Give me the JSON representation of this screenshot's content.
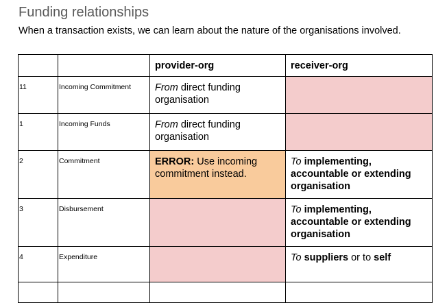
{
  "page": {
    "title": "Funding relationships",
    "intro": "When a transaction exists, we can learn about the nature of the organisations involved."
  },
  "table": {
    "headers": {
      "code": "",
      "name": "",
      "provider": "provider-org",
      "receiver": "receiver-org"
    },
    "rows": [
      {
        "code": "11",
        "name": "Incoming Commitment",
        "provider": {
          "em": "From",
          "rest": " direct funding organisation"
        },
        "receiver": ""
      },
      {
        "code": "1",
        "name": "Incoming Funds",
        "provider": {
          "em": "From",
          "rest": " direct funding organisation"
        },
        "receiver": ""
      },
      {
        "code": "2",
        "name": "Commitment",
        "provider": {
          "strong": "ERROR:",
          "rest": " Use incoming commitment instead."
        },
        "receiver": {
          "em": "To",
          "strong": " implementing, accountable or extending organisation"
        }
      },
      {
        "code": "3",
        "name": "Disbursement",
        "provider": "",
        "receiver": {
          "em": "To",
          "strong": " implementing, accountable or extending organisation"
        }
      },
      {
        "code": "4",
        "name": "Expenditure",
        "provider": "",
        "receiver": {
          "em": "To",
          "strong1": " suppliers",
          "mid": " or to ",
          "strong2": "self"
        }
      }
    ]
  },
  "colors": {
    "title_gray": "#595959",
    "empty_cell_pink": "#f4cccc",
    "error_orange": "#f9cb9c",
    "border": "#000000"
  }
}
